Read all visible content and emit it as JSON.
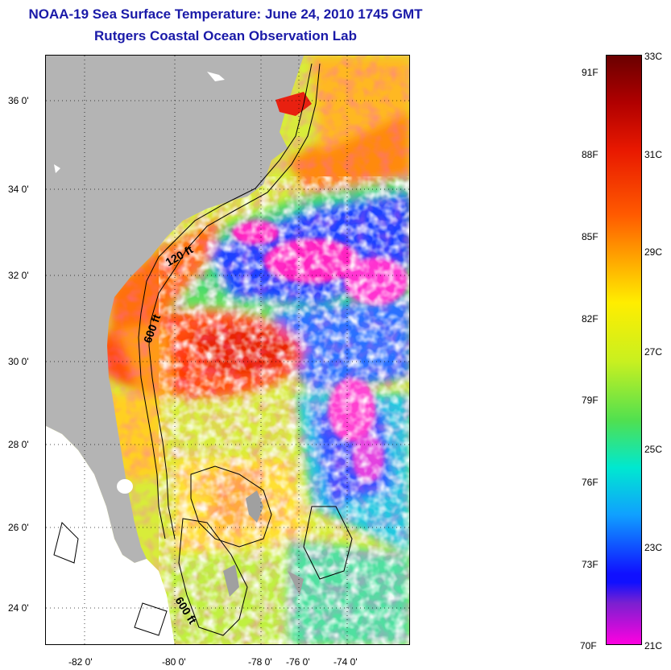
{
  "title": "NOAA-19 Sea Surface Temperature:  June 24, 2010 1745 GMT",
  "subtitle": "Rutgers Coastal Ocean Observation Lab",
  "map": {
    "lat_ticks": [
      "36 0'",
      "34 0'",
      "32 0'",
      "30 0'",
      "28 0'",
      "26 0'",
      "24 0'"
    ],
    "lon_ticks": [
      "-82 0'",
      "-80 0'",
      "-78 0'",
      "-76 0'",
      "-74 0'"
    ],
    "contour_labels": [
      "120 ft",
      "600 ft",
      "600 ft"
    ],
    "land_color": "#b4b4b4",
    "cloud_color": "#ffffff"
  },
  "colorbar": {
    "fahrenheit_labels": [
      "91F",
      "88F",
      "85F",
      "82F",
      "79F",
      "76F",
      "73F",
      "70F"
    ],
    "celsius_labels": [
      "33C",
      "31C",
      "29C",
      "27C",
      "25C",
      "23C",
      "21C"
    ],
    "range_c": [
      21,
      33
    ],
    "range_f": [
      70,
      91
    ]
  }
}
